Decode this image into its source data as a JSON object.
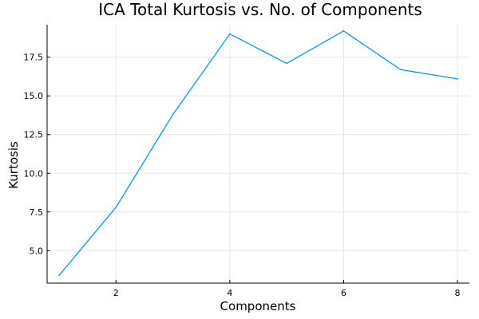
{
  "chart_data": {
    "type": "line",
    "title": "ICA Total Kurtosis vs. No. of Components",
    "xlabel": "Components",
    "ylabel": "Kurtosis",
    "xlim": [
      0.79,
      8.21
    ],
    "ylim": [
      2.9,
      19.6
    ],
    "xticks": [
      2,
      4,
      6,
      8
    ],
    "xtick_labels": [
      "2",
      "4",
      "6",
      "8"
    ],
    "yticks": [
      5.0,
      7.5,
      10.0,
      12.5,
      15.0,
      17.5
    ],
    "ytick_labels": [
      "5.0",
      "7.5",
      "10.0",
      "12.5",
      "15.0",
      "17.5"
    ],
    "grid": true,
    "legend": "none",
    "series": [
      {
        "color": "#009af9",
        "x": [
          1,
          2,
          3,
          4,
          5,
          6,
          7,
          8
        ],
        "y": [
          3.4,
          7.8,
          13.8,
          19.0,
          17.1,
          19.2,
          16.7,
          16.1
        ]
      }
    ]
  }
}
